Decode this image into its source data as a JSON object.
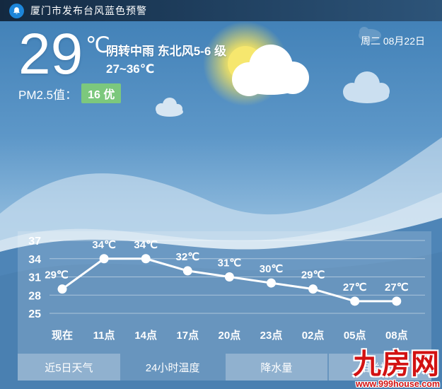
{
  "alert_bar": {
    "title": "厦门市发布台风蓝色预警"
  },
  "current": {
    "temperature": "29",
    "unit": "℃",
    "condition": "阴转中雨 东北风5-6 级",
    "range": "27~36℃",
    "pm25_label": "PM2.5值：",
    "pm25_value": "16 优",
    "date": "周二 08月22日"
  },
  "chart_data": {
    "type": "line",
    "title": "24小时温度",
    "categories": [
      "现在",
      "11点",
      "14点",
      "17点",
      "20点",
      "23点",
      "02点",
      "05点",
      "08点"
    ],
    "values": [
      29,
      34,
      34,
      32,
      31,
      30,
      29,
      27,
      27
    ],
    "point_labels": [
      "29℃",
      "34℃",
      "34℃",
      "32℃",
      "31℃",
      "30℃",
      "29℃",
      "27℃",
      "27℃"
    ],
    "y_ticks": [
      37,
      34,
      31,
      28,
      25
    ],
    "ylim": [
      25,
      37
    ],
    "grid": true,
    "legend": "none",
    "line_color": "#ffffff",
    "marker_color": "#ffffff"
  },
  "tabs": [
    {
      "label": "近5日天气",
      "active": false
    },
    {
      "label": "24小时温度",
      "active": true
    },
    {
      "label": "降水量",
      "active": false
    },
    {
      "label": "相关指数",
      "active": false
    }
  ],
  "watermark": {
    "name": "九房网",
    "url": "www.999house.com",
    "color": "#d21212"
  },
  "colors": {
    "topbar_dark": "#142940",
    "topbar_light": "#2d5479",
    "bell_circle": "#1d86da",
    "sky_top": "#3e7eb5",
    "sky_bottom": "#4e85b7",
    "panel_overlay": "rgba(255,255,255,0.17)",
    "pm_badge_green": "#7cc87d",
    "sun_yellow": "#f6e76e"
  }
}
